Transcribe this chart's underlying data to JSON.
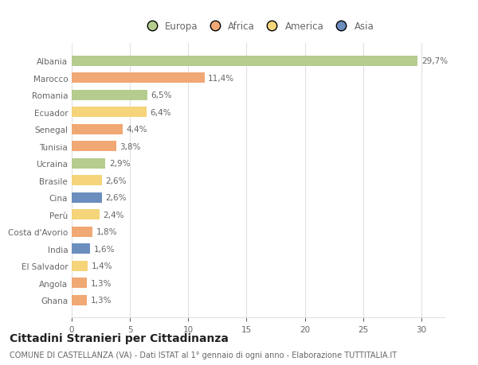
{
  "countries": [
    "Albania",
    "Marocco",
    "Romania",
    "Ecuador",
    "Senegal",
    "Tunisia",
    "Ucraina",
    "Brasile",
    "Cina",
    "Perù",
    "Costa d'Avorio",
    "India",
    "El Salvador",
    "Angola",
    "Ghana"
  ],
  "values": [
    29.7,
    11.4,
    6.5,
    6.4,
    4.4,
    3.8,
    2.9,
    2.6,
    2.6,
    2.4,
    1.8,
    1.6,
    1.4,
    1.3,
    1.3
  ],
  "labels": [
    "29,7%",
    "11,4%",
    "6,5%",
    "6,4%",
    "4,4%",
    "3,8%",
    "2,9%",
    "2,6%",
    "2,6%",
    "2,4%",
    "1,8%",
    "1,6%",
    "1,4%",
    "1,3%",
    "1,3%"
  ],
  "continents": [
    "Europa",
    "Africa",
    "Europa",
    "America",
    "Africa",
    "Africa",
    "Europa",
    "America",
    "Asia",
    "America",
    "Africa",
    "Asia",
    "America",
    "Africa",
    "Africa"
  ],
  "continent_colors": {
    "Europa": "#b5cc8e",
    "Africa": "#f0a875",
    "America": "#f5d47a",
    "Asia": "#6c8ebf"
  },
  "legend_order": [
    "Europa",
    "Africa",
    "America",
    "Asia"
  ],
  "title": "Cittadini Stranieri per Cittadinanza",
  "subtitle": "COMUNE DI CASTELLANZA (VA) - Dati ISTAT al 1° gennaio di ogni anno - Elaborazione TUTTITALIA.IT",
  "xlim": [
    0,
    32
  ],
  "xticks": [
    0,
    5,
    10,
    15,
    20,
    25,
    30
  ],
  "background_color": "#ffffff",
  "bar_height": 0.6,
  "grid_color": "#e0e0e0",
  "text_color": "#666666",
  "label_fontsize": 7.5,
  "tick_fontsize": 7.5,
  "title_fontsize": 10,
  "subtitle_fontsize": 7.0,
  "legend_fontsize": 8.5
}
